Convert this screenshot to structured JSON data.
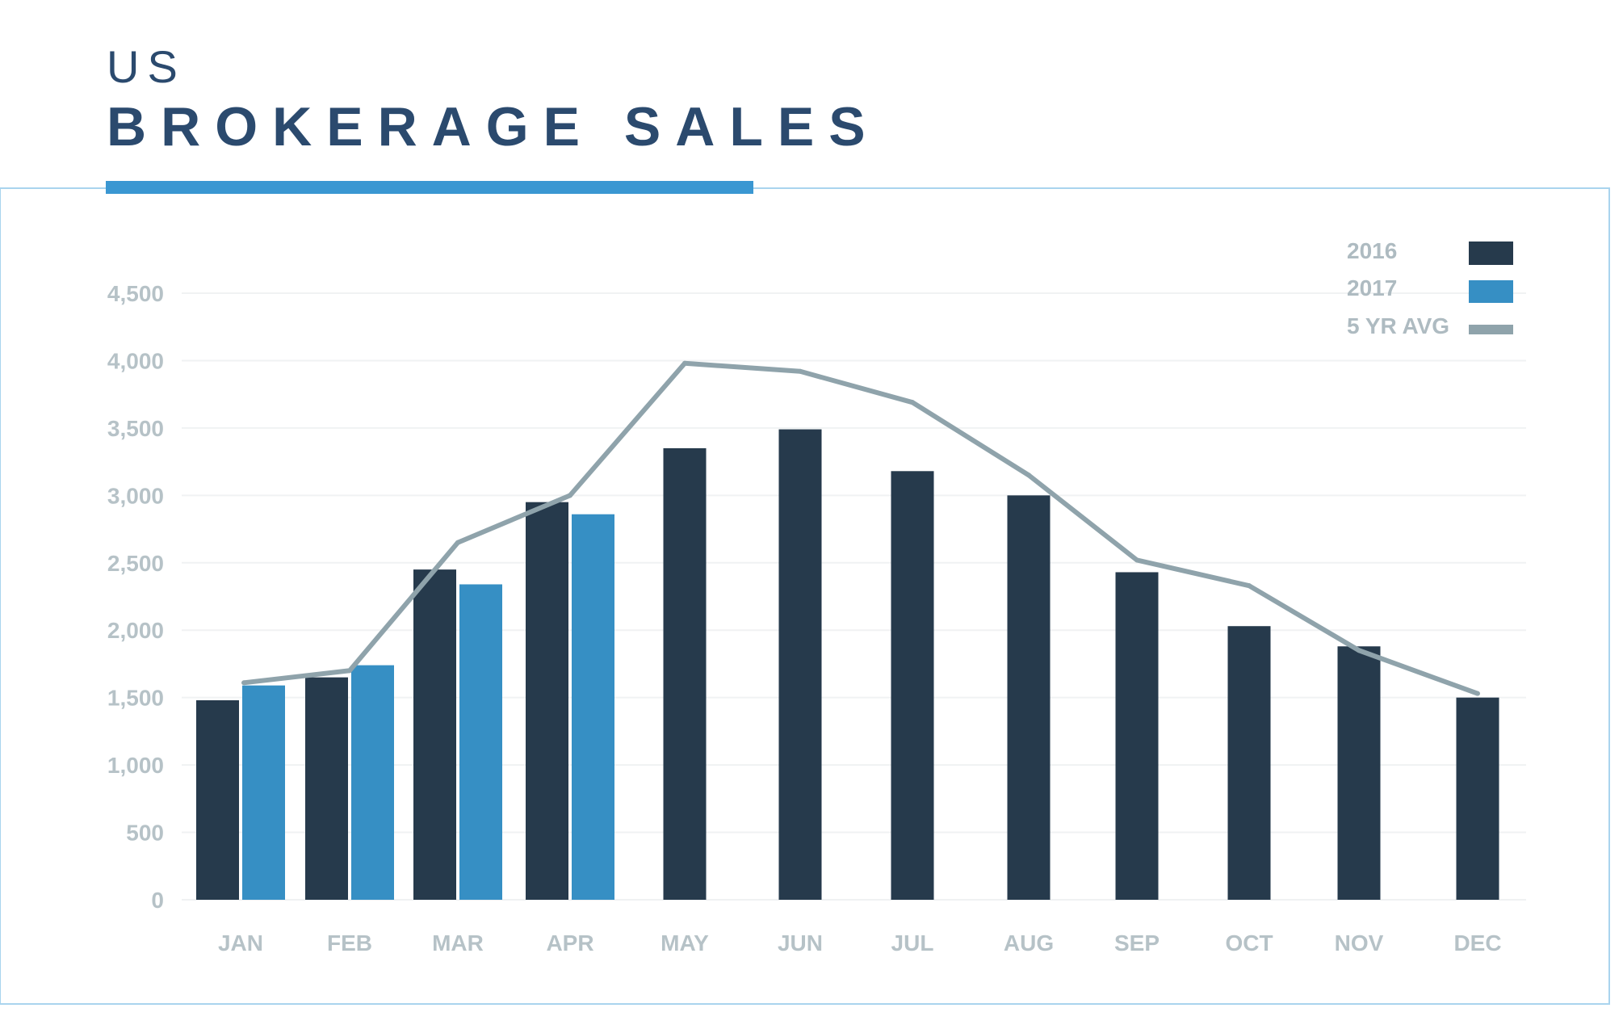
{
  "header": {
    "title_top": "US",
    "title_main": "BROKERAGE SALES"
  },
  "colors": {
    "title": "#2b4a6e",
    "accent_underline": "#3a97d2",
    "frame_border": "#a9d4ee",
    "series_2016": "#263a4c",
    "series_2017": "#368fc4",
    "series_avg": "#8fa3ab",
    "tick_text": "#b6c2c7",
    "gridline": "#f0f2f3"
  },
  "chart_data": {
    "type": "bar",
    "categories": [
      "JAN",
      "FEB",
      "MAR",
      "APR",
      "MAY",
      "JUN",
      "JUL",
      "AUG",
      "SEP",
      "OCT",
      "NOV",
      "DEC"
    ],
    "series": [
      {
        "name": "2016",
        "type": "bar",
        "values": [
          1480,
          1650,
          2450,
          2950,
          3350,
          3490,
          3180,
          3000,
          2430,
          2030,
          1880,
          1500
        ]
      },
      {
        "name": "2017",
        "type": "bar",
        "values": [
          1590,
          1740,
          2340,
          2860,
          null,
          null,
          null,
          null,
          null,
          null,
          null,
          null
        ]
      },
      {
        "name": "5 YR AVG",
        "type": "line",
        "values": [
          1610,
          1700,
          2650,
          3000,
          3980,
          3920,
          3690,
          3150,
          2520,
          2330,
          1850,
          1530
        ]
      }
    ],
    "y_ticks": [
      "0",
      "500",
      "1,000",
      "1,500",
      "2,000",
      "2,500",
      "3,000",
      "3,500",
      "4,000",
      "4,500"
    ],
    "ylim": [
      0,
      4500
    ],
    "ytick_step": 500,
    "grid": true,
    "legend_position": "top-right"
  }
}
